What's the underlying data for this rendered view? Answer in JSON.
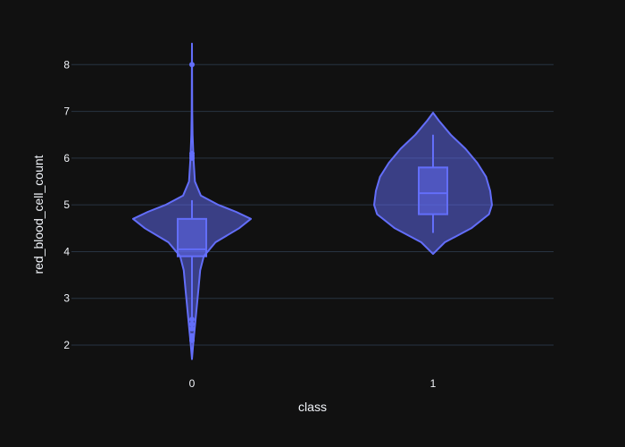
{
  "chart_data": {
    "type": "violin",
    "xlabel": "class",
    "ylabel": "red_blood_cell_count",
    "categories": [
      "0",
      "1"
    ],
    "ylim": [
      1.35,
      9.0
    ],
    "yticks": [
      2,
      3,
      4,
      5,
      6,
      7,
      8
    ],
    "grid": true,
    "series_color": "#636efa",
    "background": "#111111",
    "violins": [
      {
        "category": "0",
        "box": {
          "q1": 3.9,
          "median": 4.05,
          "q3": 4.7,
          "whisker_low": 2.6,
          "whisker_high": 5.1
        },
        "outliers": [
          8.0,
          6.1,
          6.05,
          6.0,
          2.55,
          2.45,
          2.35,
          2.2,
          2.1
        ],
        "density": [
          [
            1.7,
            0.0
          ],
          [
            2.0,
            0.02
          ],
          [
            2.4,
            0.05
          ],
          [
            2.8,
            0.08
          ],
          [
            3.2,
            0.11
          ],
          [
            3.6,
            0.14
          ],
          [
            3.9,
            0.2
          ],
          [
            4.2,
            0.4
          ],
          [
            4.5,
            0.8
          ],
          [
            4.7,
            1.0
          ],
          [
            4.85,
            0.75
          ],
          [
            5.0,
            0.45
          ],
          [
            5.2,
            0.15
          ],
          [
            5.5,
            0.05
          ],
          [
            6.0,
            0.025
          ],
          [
            6.5,
            0.01
          ],
          [
            7.0,
            0.005
          ],
          [
            8.45,
            0.0
          ]
        ]
      },
      {
        "category": "1",
        "box": {
          "q1": 4.8,
          "median": 5.25,
          "q3": 5.8,
          "whisker_low": 4.4,
          "whisker_high": 6.5
        },
        "outliers": [],
        "density": [
          [
            3.95,
            0.0
          ],
          [
            4.2,
            0.2
          ],
          [
            4.5,
            0.65
          ],
          [
            4.8,
            0.95
          ],
          [
            5.0,
            1.0
          ],
          [
            5.3,
            0.97
          ],
          [
            5.6,
            0.9
          ],
          [
            5.9,
            0.75
          ],
          [
            6.2,
            0.55
          ],
          [
            6.5,
            0.3
          ],
          [
            6.8,
            0.1
          ],
          [
            6.97,
            0.0
          ]
        ]
      }
    ]
  }
}
